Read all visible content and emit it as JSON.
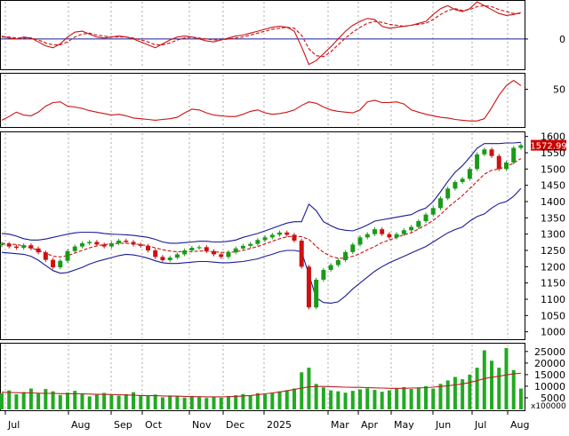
{
  "chart_data": [
    {
      "panel": "macd",
      "type": "line",
      "y_ticks": [
        "0"
      ],
      "ylim": [
        -30,
        38
      ],
      "x": [
        0,
        8,
        16,
        24,
        32,
        40,
        48,
        56,
        64,
        72,
        80,
        88,
        96,
        104,
        112,
        120,
        128,
        136,
        144,
        152,
        160,
        168,
        176,
        184,
        192,
        200,
        208,
        216,
        224,
        232,
        240,
        248,
        256,
        264,
        272,
        280,
        288,
        296,
        304,
        312,
        320,
        328,
        336,
        344,
        352,
        360,
        368,
        376,
        384,
        392,
        400,
        408,
        416,
        424,
        432,
        440,
        448,
        456,
        464,
        472,
        480,
        488,
        496,
        504,
        512,
        520,
        528,
        536,
        544,
        552,
        560,
        568
      ],
      "series": [
        {
          "role": "macd",
          "style": "solid",
          "values": [
            3,
            1,
            0,
            2,
            1,
            -3,
            -7,
            -9,
            -5,
            2,
            7,
            8,
            5,
            2,
            1,
            2,
            3,
            2,
            0,
            -3,
            -6,
            -9,
            -5,
            -1,
            2,
            3,
            2,
            0,
            -2,
            -3,
            -1,
            1,
            3,
            4,
            6,
            8,
            10,
            12,
            13,
            12,
            8,
            -8,
            -26,
            -22,
            -15,
            -8,
            0,
            8,
            14,
            18,
            21,
            20,
            13,
            11,
            12,
            13,
            14,
            16,
            18,
            25,
            31,
            34,
            30,
            28,
            31,
            38,
            34,
            30,
            26,
            24,
            25,
            27
          ]
        },
        {
          "role": "signal",
          "style": "dashed",
          "values": [
            2,
            2,
            1,
            1,
            1,
            -1,
            -4,
            -6,
            -6,
            -3,
            2,
            5,
            6,
            4,
            3,
            2,
            2,
            2,
            1,
            -1,
            -3,
            -6,
            -6,
            -4,
            -1,
            1,
            2,
            1,
            0,
            -1,
            -1,
            0,
            1,
            2,
            4,
            6,
            8,
            10,
            11,
            12,
            11,
            4,
            -10,
            -17,
            -18,
            -13,
            -6,
            1,
            7,
            12,
            16,
            18,
            17,
            15,
            14,
            13,
            14,
            15,
            16,
            20,
            25,
            29,
            31,
            29,
            30,
            33,
            34,
            33,
            30,
            28,
            26,
            26
          ]
        }
      ]
    },
    {
      "panel": "rsi",
      "type": "line",
      "y_ticks": [
        "50"
      ],
      "ylim": [
        0,
        70
      ],
      "x": [
        0,
        8,
        16,
        24,
        32,
        40,
        48,
        56,
        64,
        72,
        80,
        88,
        96,
        104,
        112,
        120,
        128,
        136,
        144,
        152,
        160,
        168,
        176,
        184,
        192,
        200,
        208,
        216,
        224,
        232,
        240,
        248,
        256,
        264,
        272,
        280,
        288,
        296,
        304,
        312,
        320,
        328,
        336,
        344,
        352,
        360,
        368,
        376,
        384,
        392,
        400,
        408,
        416,
        424,
        432,
        440,
        448,
        456,
        464,
        472,
        480,
        488,
        496,
        504,
        512,
        520,
        528,
        536,
        544,
        552,
        560,
        568
      ],
      "series": [
        {
          "role": "rsi",
          "style": "solid",
          "values": [
            8,
            13,
            19,
            15,
            14,
            19,
            27,
            32,
            33,
            27,
            26,
            24,
            21,
            19,
            17,
            15,
            16,
            14,
            11,
            10,
            9,
            8,
            9,
            10,
            12,
            18,
            23,
            22,
            18,
            15,
            14,
            13,
            13,
            16,
            20,
            22,
            18,
            16,
            17,
            19,
            22,
            28,
            33,
            31,
            26,
            22,
            20,
            19,
            18,
            22,
            33,
            35,
            32,
            32,
            33,
            30,
            22,
            19,
            16,
            14,
            12,
            11,
            9,
            8,
            7,
            7,
            10,
            25,
            42,
            55,
            62,
            55
          ]
        }
      ]
    },
    {
      "panel": "price",
      "type": "line",
      "y_ticks": [
        "1000",
        "1050",
        "1100",
        "1150",
        "1200",
        "1250",
        "1300",
        "1350",
        "1400",
        "1450",
        "1500",
        "1550",
        "1600"
      ],
      "ylim": [
        980,
        1610
      ],
      "last_price_label": "1572.99",
      "x": [
        0,
        8,
        16,
        24,
        32,
        40,
        48,
        56,
        64,
        72,
        80,
        88,
        96,
        104,
        112,
        120,
        128,
        136,
        144,
        152,
        160,
        168,
        176,
        184,
        192,
        200,
        208,
        216,
        224,
        232,
        240,
        248,
        256,
        264,
        272,
        280,
        288,
        296,
        304,
        312,
        320,
        328,
        336,
        344,
        352,
        360,
        368,
        376,
        384,
        392,
        400,
        408,
        416,
        424,
        432,
        440,
        448,
        456,
        464,
        472,
        480,
        488,
        496,
        504,
        512,
        520,
        528,
        536,
        544,
        552,
        560,
        568
      ],
      "series": [
        {
          "role": "close",
          "style": "candles",
          "values": [
            1270,
            1262,
            1258,
            1266,
            1256,
            1244,
            1221,
            1198,
            1218,
            1248,
            1262,
            1272,
            1276,
            1268,
            1262,
            1272,
            1280,
            1276,
            1268,
            1264,
            1250,
            1230,
            1220,
            1228,
            1238,
            1250,
            1258,
            1260,
            1248,
            1238,
            1230,
            1244,
            1256,
            1264,
            1270,
            1282,
            1290,
            1298,
            1305,
            1298,
            1280,
            1200,
            1075,
            1160,
            1190,
            1205,
            1220,
            1245,
            1268,
            1290,
            1300,
            1315,
            1300,
            1290,
            1300,
            1312,
            1322,
            1340,
            1360,
            1380,
            1410,
            1440,
            1460,
            1470,
            1500,
            1545,
            1560,
            1540,
            1500,
            1520,
            1565,
            1573
          ]
        },
        {
          "role": "bollinger-upper",
          "style": "solid",
          "values": [
            1302,
            1300,
            1294,
            1286,
            1282,
            1282,
            1285,
            1290,
            1295,
            1300,
            1304,
            1306,
            1306,
            1305,
            1302,
            1300,
            1299,
            1298,
            1296,
            1293,
            1290,
            1284,
            1276,
            1272,
            1272,
            1274,
            1276,
            1278,
            1278,
            1276,
            1276,
            1278,
            1282,
            1290,
            1296,
            1302,
            1310,
            1318,
            1326,
            1334,
            1338,
            1338,
            1392,
            1372,
            1338,
            1326,
            1316,
            1312,
            1310,
            1318,
            1328,
            1340,
            1344,
            1348,
            1352,
            1356,
            1360,
            1372,
            1380,
            1400,
            1430,
            1462,
            1490,
            1510,
            1536,
            1564,
            1578,
            1578,
            1578,
            1580,
            1580,
            1582
          ]
        },
        {
          "role": "bollinger-middle",
          "style": "dashed",
          "values": [
            1272,
            1270,
            1268,
            1264,
            1258,
            1250,
            1242,
            1232,
            1230,
            1234,
            1242,
            1250,
            1258,
            1264,
            1268,
            1270,
            1272,
            1272,
            1270,
            1268,
            1264,
            1258,
            1252,
            1248,
            1246,
            1246,
            1246,
            1248,
            1248,
            1246,
            1244,
            1244,
            1246,
            1250,
            1256,
            1262,
            1270,
            1278,
            1286,
            1292,
            1294,
            1292,
            1284,
            1262,
            1244,
            1232,
            1226,
            1226,
            1232,
            1240,
            1252,
            1262,
            1274,
            1282,
            1290,
            1298,
            1304,
            1316,
            1328,
            1342,
            1360,
            1382,
            1400,
            1418,
            1440,
            1462,
            1484,
            1496,
            1500,
            1508,
            1518,
            1532
          ]
        },
        {
          "role": "bollinger-lower",
          "style": "solid",
          "values": [
            1244,
            1242,
            1240,
            1238,
            1232,
            1220,
            1204,
            1188,
            1180,
            1182,
            1190,
            1198,
            1208,
            1216,
            1222,
            1228,
            1234,
            1238,
            1236,
            1232,
            1226,
            1218,
            1212,
            1210,
            1210,
            1212,
            1214,
            1216,
            1216,
            1214,
            1212,
            1212,
            1214,
            1216,
            1220,
            1224,
            1232,
            1238,
            1246,
            1250,
            1250,
            1246,
            1176,
            1104,
            1090,
            1088,
            1092,
            1110,
            1132,
            1150,
            1168,
            1186,
            1200,
            1212,
            1222,
            1232,
            1242,
            1252,
            1262,
            1276,
            1290,
            1304,
            1314,
            1322,
            1340,
            1354,
            1362,
            1380,
            1394,
            1400,
            1416,
            1440
          ]
        }
      ]
    },
    {
      "panel": "volume",
      "type": "bar",
      "y_ticks": [
        "5000",
        "10000",
        "15000",
        "20000",
        "25000"
      ],
      "scale_label": "x100000",
      "ylim": [
        0,
        28000
      ],
      "x": [
        0,
        8,
        16,
        24,
        32,
        40,
        48,
        56,
        64,
        72,
        80,
        88,
        96,
        104,
        112,
        120,
        128,
        136,
        144,
        152,
        160,
        168,
        176,
        184,
        192,
        200,
        208,
        216,
        224,
        232,
        240,
        248,
        256,
        264,
        272,
        280,
        288,
        296,
        304,
        312,
        320,
        328,
        336,
        344,
        352,
        360,
        368,
        376,
        384,
        392,
        400,
        408,
        416,
        424,
        432,
        440,
        448,
        456,
        464,
        472,
        480,
        488,
        496,
        504,
        512,
        520,
        528,
        536,
        544,
        552,
        560,
        568
      ],
      "series": [
        {
          "role": "volume",
          "style": "bars",
          "values": [
            7000,
            8200,
            6500,
            7500,
            9000,
            6800,
            8800,
            7800,
            6200,
            7200,
            8000,
            6900,
            5600,
            6300,
            7100,
            6200,
            5900,
            6600,
            7400,
            6100,
            5700,
            6400,
            5200,
            6000,
            5600,
            5100,
            5800,
            5300,
            4900,
            5500,
            5000,
            5700,
            6100,
            6600,
            6000,
            7000,
            6500,
            7200,
            7800,
            8300,
            9000,
            16000,
            18000,
            11000,
            9500,
            8200,
            7800,
            7200,
            8000,
            8600,
            9100,
            8400,
            7600,
            8200,
            9000,
            9600,
            8800,
            9400,
            10000,
            9000,
            11000,
            12500,
            14000,
            13000,
            15000,
            18000,
            25500,
            21000,
            18000,
            26500,
            17000,
            9000
          ]
        },
        {
          "role": "volume-ma",
          "style": "solid",
          "values": [
            7400,
            7300,
            7200,
            7100,
            7100,
            7000,
            6900,
            6900,
            6800,
            6800,
            6700,
            6700,
            6600,
            6500,
            6500,
            6400,
            6300,
            6200,
            6100,
            6000,
            5900,
            5900,
            5800,
            5700,
            5700,
            5600,
            5500,
            5500,
            5400,
            5400,
            5400,
            5500,
            5600,
            5800,
            6000,
            6300,
            6700,
            7100,
            7500,
            8000,
            8600,
            9200,
            9700,
            9900,
            9900,
            9800,
            9700,
            9600,
            9500,
            9500,
            9400,
            9300,
            9200,
            9100,
            9100,
            9100,
            9200,
            9300,
            9400,
            9600,
            9900,
            10200,
            10600,
            11000,
            11600,
            12400,
            13300,
            13900,
            14300,
            14900,
            15400,
            15600
          ]
        }
      ]
    }
  ],
  "x_axis": {
    "month_labels": [
      "Jul",
      "Aug",
      "Sep",
      "Oct",
      "Nov",
      "Dec",
      "2025",
      "Mar",
      "Apr",
      "May",
      "Jun",
      "Jul",
      "Aug"
    ],
    "month_x": [
      2,
      73,
      121,
      156,
      209,
      247,
      293,
      365,
      399,
      436,
      483,
      527,
      567
    ]
  },
  "colors": {
    "up": "#1a9a1a",
    "down": "#cc1111",
    "upper_band": "#1a1a99",
    "middle_band": "#cc1111",
    "lower_band": "#1a1a99",
    "macd_line": "#cc1111",
    "signal_line": "#cc1111",
    "zero_line": "#1a1a99",
    "rsi_line": "#cc1111",
    "volume_bars": "#22aa22",
    "volume_ma": "#bb2222",
    "label_bg": "#cc0000",
    "grid": "#aaaaaa"
  }
}
